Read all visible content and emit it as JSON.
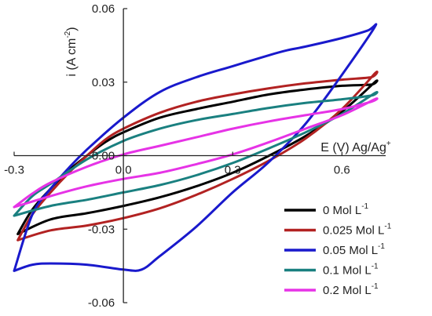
{
  "chart_data": {
    "type": "line",
    "title": "",
    "xlabel": {
      "main": "E (V) Ag/Ag",
      "sup": "+"
    },
    "ylabel": {
      "main": "i (A cm",
      "sup": "-2",
      "close": ")"
    },
    "xlim": [
      -0.3,
      0.72
    ],
    "ylim": [
      -0.06,
      0.06
    ],
    "x_ticks": [
      {
        "value": -0.3,
        "label": "-0.3"
      },
      {
        "value": 0.0,
        "label": "0.0"
      },
      {
        "value": 0.3,
        "label": "0.3"
      },
      {
        "value": 0.6,
        "label": "0.6"
      }
    ],
    "y_ticks": [
      {
        "value": 0.06,
        "label": "0.06"
      },
      {
        "value": 0.03,
        "label": "0.03"
      },
      {
        "value": 0.0,
        "label": "0.00"
      },
      {
        "value": -0.03,
        "label": "-0.03"
      },
      {
        "value": -0.06,
        "label": "-0.06"
      }
    ],
    "grid": false,
    "legend_position": "bottom-right",
    "series": [
      {
        "name": {
          "main": "0 Mol L",
          "sup": "-1"
        },
        "color": "#000000",
        "points": [
          [
            -0.29,
            -0.032
          ],
          [
            -0.2,
            -0.026
          ],
          [
            -0.1,
            -0.0235
          ],
          [
            0.0,
            -0.0205
          ],
          [
            0.1,
            -0.017
          ],
          [
            0.2,
            -0.0125
          ],
          [
            0.3,
            -0.007
          ],
          [
            0.4,
            0.0
          ],
          [
            0.5,
            0.008
          ],
          [
            0.6,
            0.018
          ],
          [
            0.69,
            0.03
          ],
          [
            0.68,
            0.029
          ],
          [
            0.6,
            0.0285
          ],
          [
            0.5,
            0.027
          ],
          [
            0.4,
            0.025
          ],
          [
            0.3,
            0.022
          ],
          [
            0.2,
            0.019
          ],
          [
            0.1,
            0.0155
          ],
          [
            0.0,
            0.0095
          ],
          [
            -0.05,
            0.0055
          ],
          [
            -0.1,
            0.0
          ],
          [
            -0.15,
            -0.006
          ],
          [
            -0.2,
            -0.0135
          ],
          [
            -0.25,
            -0.022
          ],
          [
            -0.29,
            -0.032
          ]
        ]
      },
      {
        "name": {
          "main": "0.025 Mol L",
          "sup": "-1"
        },
        "color": "#b22222",
        "points": [
          [
            -0.29,
            -0.0345
          ],
          [
            -0.2,
            -0.0305
          ],
          [
            -0.1,
            -0.0285
          ],
          [
            0.0,
            -0.0255
          ],
          [
            0.1,
            -0.0215
          ],
          [
            0.2,
            -0.016
          ],
          [
            0.3,
            -0.0095
          ],
          [
            0.4,
            -0.002
          ],
          [
            0.5,
            0.007
          ],
          [
            0.6,
            0.019
          ],
          [
            0.69,
            0.0335
          ],
          [
            0.68,
            0.032
          ],
          [
            0.6,
            0.031
          ],
          [
            0.5,
            0.0295
          ],
          [
            0.4,
            0.0275
          ],
          [
            0.3,
            0.025
          ],
          [
            0.2,
            0.022
          ],
          [
            0.1,
            0.0175
          ],
          [
            0.0,
            0.011
          ],
          [
            -0.05,
            0.0065
          ],
          [
            -0.1,
            0.0
          ],
          [
            -0.15,
            -0.007
          ],
          [
            -0.2,
            -0.015
          ],
          [
            -0.25,
            -0.024
          ],
          [
            -0.29,
            -0.0345
          ]
        ]
      },
      {
        "name": {
          "main": "0.05 Mol L",
          "sup": "-1"
        },
        "color": "#1919cc",
        "points": [
          [
            -0.3,
            -0.047
          ],
          [
            -0.25,
            -0.0445
          ],
          [
            -0.2,
            -0.044
          ],
          [
            -0.1,
            -0.0445
          ],
          [
            0.0,
            -0.0465
          ],
          [
            0.05,
            -0.0465
          ],
          [
            0.1,
            -0.041
          ],
          [
            0.2,
            -0.029
          ],
          [
            0.3,
            -0.015
          ],
          [
            0.4,
            -0.0025
          ],
          [
            0.5,
            0.013
          ],
          [
            0.6,
            0.033
          ],
          [
            0.69,
            0.0525
          ],
          [
            0.67,
            0.051
          ],
          [
            0.6,
            0.048
          ],
          [
            0.5,
            0.0445
          ],
          [
            0.45,
            0.043
          ],
          [
            0.4,
            0.041
          ],
          [
            0.3,
            0.0365
          ],
          [
            0.2,
            0.032
          ],
          [
            0.1,
            0.026
          ],
          [
            0.0,
            0.0155
          ],
          [
            -0.1,
            0.0025
          ],
          [
            -0.15,
            -0.005
          ],
          [
            -0.2,
            -0.0135
          ],
          [
            -0.25,
            -0.024
          ],
          [
            -0.3,
            -0.047
          ]
        ]
      },
      {
        "name": {
          "main": "0.1 Mol L",
          "sup": "-1"
        },
        "color": "#1a8080",
        "points": [
          [
            -0.3,
            -0.0245
          ],
          [
            -0.2,
            -0.0205
          ],
          [
            -0.1,
            -0.018
          ],
          [
            0.0,
            -0.015
          ],
          [
            0.1,
            -0.012
          ],
          [
            0.2,
            -0.008
          ],
          [
            0.3,
            -0.003
          ],
          [
            0.4,
            0.003
          ],
          [
            0.5,
            0.0095
          ],
          [
            0.6,
            0.017
          ],
          [
            0.69,
            0.0255
          ],
          [
            0.68,
            0.0245
          ],
          [
            0.6,
            0.023
          ],
          [
            0.5,
            0.0215
          ],
          [
            0.4,
            0.0195
          ],
          [
            0.3,
            0.017
          ],
          [
            0.2,
            0.0145
          ],
          [
            0.1,
            0.011
          ],
          [
            0.0,
            0.006
          ],
          [
            -0.1,
            -0.0015
          ],
          [
            -0.2,
            -0.0115
          ],
          [
            -0.25,
            -0.0165
          ],
          [
            -0.3,
            -0.0245
          ]
        ]
      },
      {
        "name": {
          "main": "0.2 Mol L",
          "sup": "-1"
        },
        "color": "#e633e6",
        "points": [
          [
            -0.3,
            -0.021
          ],
          [
            -0.2,
            -0.0165
          ],
          [
            -0.1,
            -0.0125
          ],
          [
            0.0,
            -0.0095
          ],
          [
            0.1,
            -0.007
          ],
          [
            0.2,
            -0.0035
          ],
          [
            0.3,
            0.0005
          ],
          [
            0.4,
            0.0055
          ],
          [
            0.5,
            0.011
          ],
          [
            0.6,
            0.0165
          ],
          [
            0.69,
            0.023
          ],
          [
            0.68,
            0.022
          ],
          [
            0.6,
            0.019
          ],
          [
            0.5,
            0.0165
          ],
          [
            0.4,
            0.014
          ],
          [
            0.3,
            0.011
          ],
          [
            0.2,
            0.0075
          ],
          [
            0.1,
            0.004
          ],
          [
            0.0,
            0.0005
          ],
          [
            -0.1,
            -0.0045
          ],
          [
            -0.2,
            -0.011
          ],
          [
            -0.25,
            -0.0155
          ],
          [
            -0.3,
            -0.021
          ]
        ]
      }
    ]
  }
}
